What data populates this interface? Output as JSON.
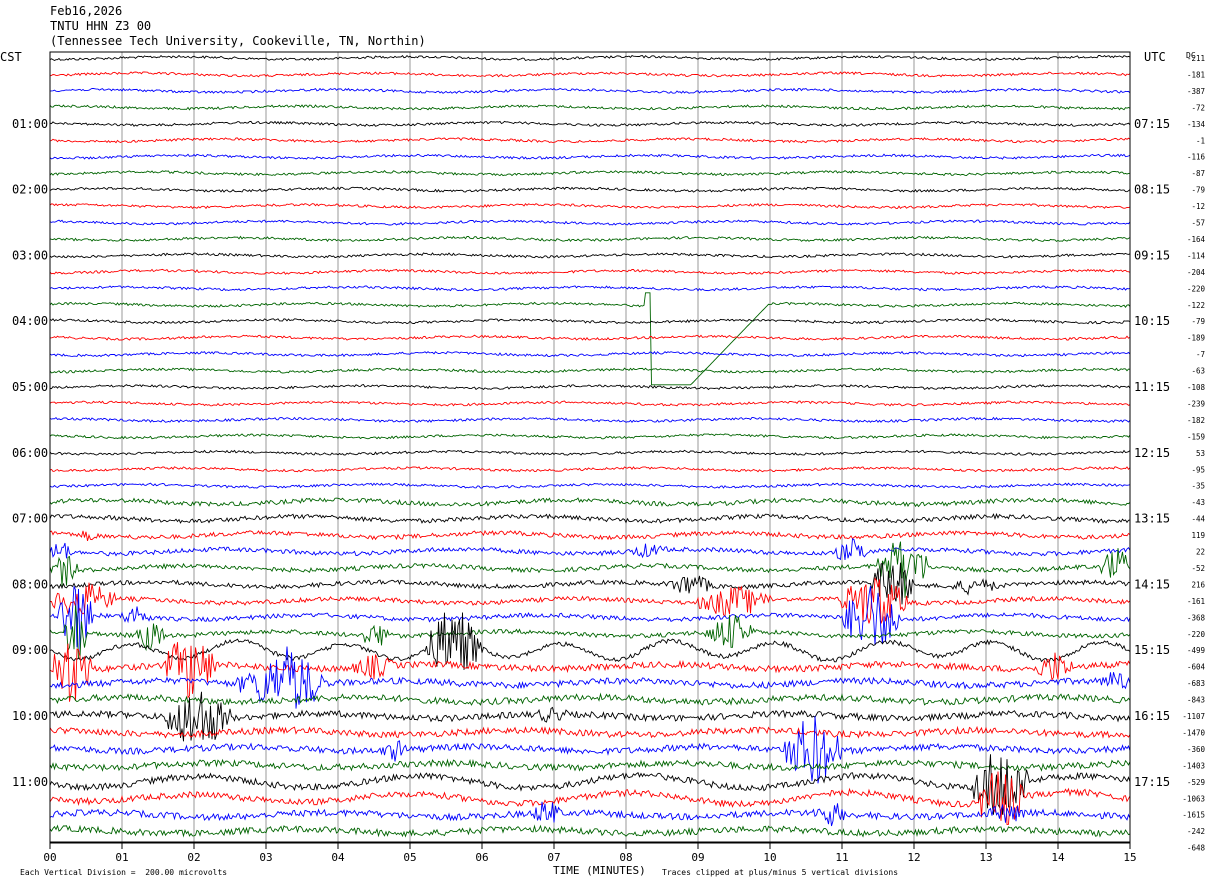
{
  "header": {
    "date": "Feb16,2026",
    "station": "TNTU HHN Z3 00",
    "location": "(Tennessee Tech University, Cookeville, TN, Northin)"
  },
  "footer": {
    "scale_note": "Each Vertical Division =  200.00 microvolts",
    "xaxis_title": "TIME (MINUTES)",
    "clip_note": "Traces clipped at plus/minus 5 vertical divisions"
  },
  "chart_data": {
    "type": "line",
    "title": "TNTU HHN Z3 00",
    "xlabel": "TIME (MINUTES)",
    "xlim": [
      0,
      15
    ],
    "x_ticks": [
      "00",
      "01",
      "02",
      "03",
      "04",
      "05",
      "06",
      "07",
      "08",
      "09",
      "10",
      "11",
      "12",
      "13",
      "14",
      "15"
    ],
    "left_axis_title": "CST",
    "right_axis_title": "UTC",
    "right_col_title": "DC",
    "left_hour_labels": [
      "01:00",
      "02:00",
      "03:00",
      "04:00",
      "05:00",
      "06:00",
      "07:00",
      "08:00",
      "09:00",
      "10:00",
      "11:00"
    ],
    "right_hour_labels": [
      "07:15",
      "08:15",
      "09:15",
      "10:15",
      "11:15",
      "12:15",
      "13:15",
      "14:15",
      "15:15",
      "16:15",
      "17:15"
    ],
    "dc_offsets": [
      "-211",
      "-181",
      "-387",
      "-72",
      "-134",
      "-1",
      "-116",
      "-87",
      "-79",
      "-12",
      "-57",
      "-164",
      "-114",
      "-204",
      "-220",
      "-122",
      "-79",
      "-189",
      "-7",
      "-63",
      "-108",
      "-239",
      "-182",
      "-159",
      "53",
      "-95",
      "-35",
      "-43",
      "-44",
      "119",
      "22",
      "-52",
      "216",
      "-161",
      "-368",
      "-220",
      "-499",
      "-604",
      "-683",
      "-843",
      "-1107",
      "-1470",
      "-360",
      "-1403",
      "-529",
      "-1063",
      "-1615",
      "-242",
      "-648"
    ],
    "trace_colors": [
      "#000000",
      "#ff0000",
      "#0000ff",
      "#006400"
    ],
    "minutes_per_trace": 15,
    "microvolts_per_division": 200
  }
}
